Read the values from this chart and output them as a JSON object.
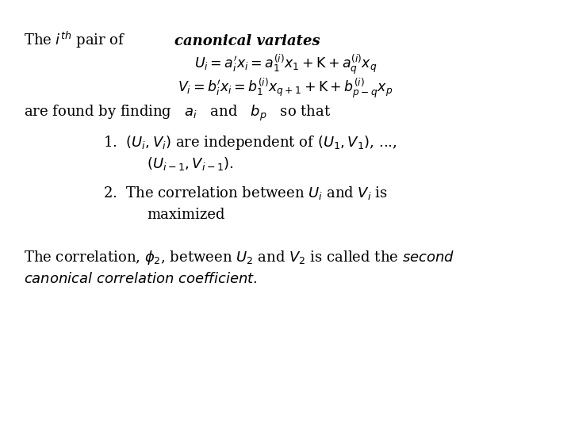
{
  "background_color": "#ffffff",
  "fig_width": 7.2,
  "fig_height": 5.4,
  "dpi": 100,
  "font_size": 13,
  "font_size_eq": 12.5
}
